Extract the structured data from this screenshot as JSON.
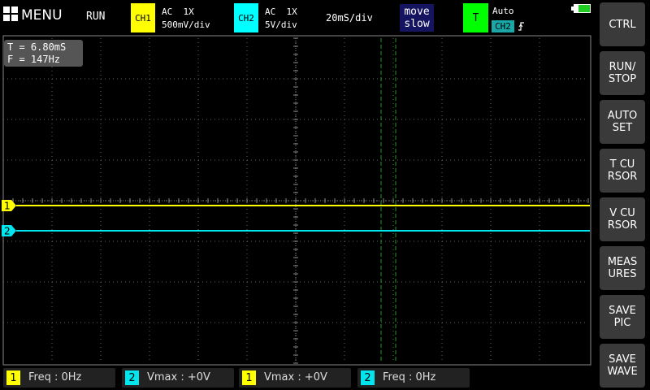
{
  "top_bar": {
    "menu": "MENU",
    "run_state": "RUN",
    "ch1": {
      "label": "CH1",
      "coupling": "AC  1X",
      "scale": "500mV/div"
    },
    "ch2": {
      "label": "CH2",
      "coupling": "AC  1X",
      "scale": "5V/div"
    },
    "timebase": "20mS/div",
    "move": {
      "line1": "move",
      "line2": "slow"
    },
    "trigger": {
      "label": "T",
      "mode": "Auto",
      "source": "CH2"
    }
  },
  "readout": {
    "period": "T = 6.80mS",
    "frequency": "F = 147Hz"
  },
  "markers": {
    "ch1": "1",
    "ch2": "2"
  },
  "buttons": [
    [
      "CTRL"
    ],
    [
      "RUN/",
      "STOP"
    ],
    [
      "AUTO",
      "SET"
    ],
    [
      "T CU",
      "RSOR"
    ],
    [
      "V CU",
      "RSOR"
    ],
    [
      "MEAS",
      "URES"
    ],
    [
      "SAVE",
      "PIC"
    ],
    [
      "SAVE",
      "WAVE"
    ]
  ],
  "measurements": [
    {
      "channel": "1",
      "text": "Freq : 0Hz"
    },
    {
      "channel": "2",
      "text": "Vmax : +0V"
    },
    {
      "channel": "1",
      "text": "Vmax : +0V"
    },
    {
      "channel": "2",
      "text": "Freq : 0Hz"
    }
  ]
}
